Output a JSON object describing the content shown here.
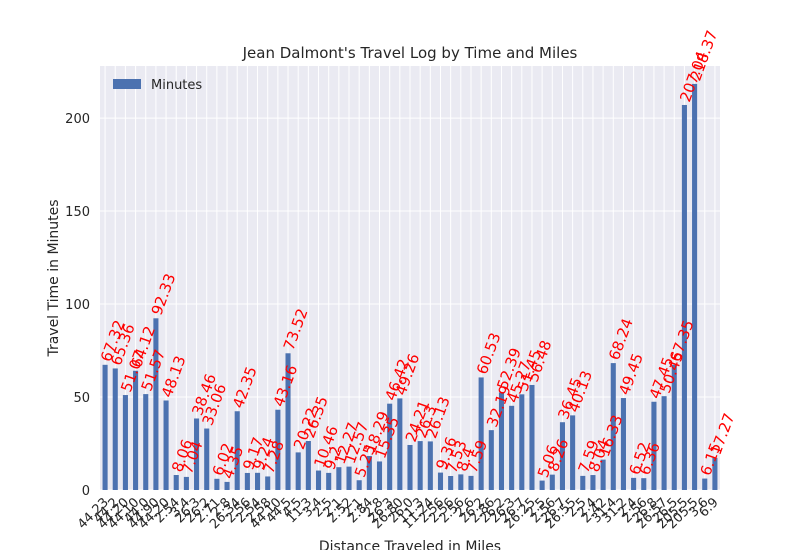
{
  "chart_data": {
    "type": "bar",
    "title": "Jean Dalmont's Travel Log by Time and Miles",
    "xlabel": "Distance Traveled in Miles",
    "ylabel": "Travel Time in Minutes",
    "ylim": [
      0,
      228
    ],
    "yticks": [
      0,
      50,
      100,
      150,
      200
    ],
    "grid": true,
    "legend_position": "top-left",
    "series": [
      {
        "name": "Minutes",
        "color": "#4c72b0",
        "values": [
          67.32,
          65.36,
          51.07,
          64.12,
          51.57,
          92.33,
          48.13,
          8.06,
          7.04,
          38.46,
          33.06,
          6.02,
          4.35,
          42.35,
          9.17,
          9.24,
          7.28,
          43.16,
          73.52,
          20.22,
          26.35,
          10.46,
          9.2,
          12.27,
          12.57,
          5.25,
          18.29,
          15.35,
          46.42,
          49.26,
          24.21,
          26.3,
          26.13,
          9.36,
          7.53,
          8.4,
          7.59,
          60.53,
          32.19,
          52.39,
          45.27,
          51.45,
          56.48,
          5.06,
          8.26,
          36.45,
          40.13,
          7.59,
          8.04,
          16.33,
          68.24,
          49.45,
          6.52,
          6.36,
          47.45,
          50.45,
          67.35,
          207.04,
          218.37,
          6.15,
          17.27
        ]
      }
    ],
    "categories": [
      "44.23",
      "44.2",
      "44.20",
      "44.10",
      "44.0",
      "44.90",
      "44.20",
      "2.54",
      "3.4",
      "26.3",
      "26.2",
      "2.71",
      "2.8",
      "26.34",
      "2.56",
      "2.54",
      "2.58",
      "44.10",
      "44.5",
      "4.5",
      "11.3",
      "3.4",
      "2.5",
      "2.1",
      "2.52",
      "2.1",
      "2.84",
      "2.8",
      "26.3",
      "26.80",
      "26.0",
      "11.3",
      "11.24",
      "2.56",
      "2.56",
      "2.56",
      "2.6",
      "26.2",
      "2.86",
      "26.2",
      "26.3",
      "26.7",
      "26.25",
      "2.5",
      "2.56",
      "26.7",
      "26.55",
      "2.5",
      "2.4",
      "2.42",
      "31.4",
      "31.2",
      "2.4",
      "2.56",
      "26.8",
      "26.57",
      "26.5",
      "205.5",
      "205.5",
      "3.6",
      "6.9"
    ],
    "data_labels": [
      "67.32",
      "65.36",
      "51.07",
      "64.12",
      "51.57",
      "92.33",
      "48.13",
      "8.06",
      "7.04",
      "38.46",
      "33.06",
      "6.02",
      "4.35",
      "42.35",
      "9.17",
      "9.24",
      "7.28",
      "43.16",
      "73.52",
      "20.22",
      "26.35",
      "10.46",
      "9.2",
      "12.27",
      "12.57",
      "5.25",
      "18.29",
      "15.35",
      "46.42",
      "49.26",
      "24.21",
      "26.3",
      "26.13",
      "9.36",
      "7.53",
      "8.4",
      "7.59",
      "60.53",
      "32.19",
      "52.39",
      "45.27",
      "51.45",
      "56.48",
      "5.06",
      "8.26",
      "36.45",
      "40.13",
      "7.59",
      "8.04",
      "16.33",
      "68.24",
      "49.45",
      "6.52",
      "6.36",
      "47.45",
      "50.45",
      "67.35",
      "207.04",
      "218.37",
      "6.15",
      "17.27"
    ],
    "colors": {
      "bar": "#4c72b0",
      "label": "#ff0000",
      "plot_bg": "#eaeaf2",
      "grid": "#ffffff"
    }
  }
}
